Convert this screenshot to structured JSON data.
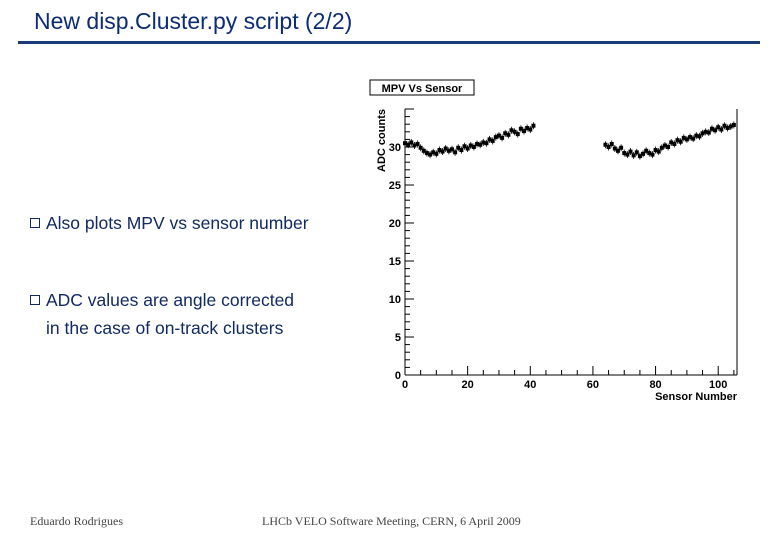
{
  "slide": {
    "title": "New disp.Cluster.py script (2/2)",
    "accent_color": "#0c2c74",
    "bullets": [
      {
        "text": "Also plots MPV vs sensor number"
      },
      {
        "text": "ADC values are angle corrected",
        "continuation": "in the case of on-track clusters"
      }
    ],
    "bullet_icon": "hollow-square-bullet-icon"
  },
  "footer": {
    "author": "Eduardo Rodrigues",
    "meeting": "LHCb VELO Software Meeting, CERN, 6 April 2009"
  },
  "chart_data": {
    "type": "scatter",
    "title": "MPV Vs Sensor",
    "xlabel": "Sensor Number",
    "ylabel": "ADC counts",
    "xlim": [
      0,
      106
    ],
    "ylim": [
      0,
      35
    ],
    "xticks": [
      0,
      20,
      40,
      60,
      80,
      100
    ],
    "yticks": [
      0,
      5,
      10,
      15,
      20,
      25,
      30
    ],
    "grid": false,
    "series": [
      {
        "marker_color": "#000000",
        "x": [
          0,
          1,
          2,
          3,
          4,
          5,
          6,
          7,
          8,
          9,
          10,
          11,
          12,
          13,
          14,
          15,
          16,
          17,
          18,
          19,
          20,
          21,
          22,
          23,
          24,
          25,
          26,
          27,
          28,
          29,
          30,
          31,
          32,
          33,
          34,
          35,
          36,
          37,
          38,
          39,
          40,
          41,
          64,
          65,
          66,
          67,
          68,
          69,
          70,
          71,
          72,
          73,
          74,
          75,
          76,
          77,
          78,
          79,
          80,
          81,
          82,
          83,
          84,
          85,
          86,
          87,
          88,
          89,
          90,
          91,
          92,
          93,
          94,
          95,
          96,
          97,
          98,
          99,
          100,
          101,
          102,
          103,
          104,
          105
        ],
        "y": [
          30.5,
          30.3,
          30.6,
          30.2,
          30.4,
          29.9,
          29.5,
          29.2,
          29.0,
          29.3,
          29.1,
          29.6,
          29.4,
          29.8,
          29.5,
          29.7,
          29.3,
          29.9,
          29.6,
          30.1,
          29.8,
          30.2,
          30.0,
          30.4,
          30.3,
          30.6,
          30.5,
          31.0,
          30.8,
          31.3,
          31.5,
          31.2,
          31.8,
          31.6,
          32.2,
          32.0,
          31.7,
          32.4,
          32.1,
          32.5,
          32.3,
          32.8,
          30.3,
          30.0,
          30.4,
          29.8,
          29.5,
          29.9,
          29.2,
          29.0,
          29.4,
          28.9,
          29.3,
          28.8,
          29.1,
          29.5,
          29.2,
          29.0,
          29.6,
          29.4,
          29.9,
          30.2,
          30.0,
          30.6,
          30.4,
          30.9,
          30.7,
          31.2,
          31.0,
          31.3,
          31.1,
          31.5,
          31.4,
          31.8,
          32.0,
          31.9,
          32.4,
          32.2,
          32.6,
          32.3,
          32.8,
          32.5,
          32.7,
          32.9
        ]
      }
    ]
  }
}
